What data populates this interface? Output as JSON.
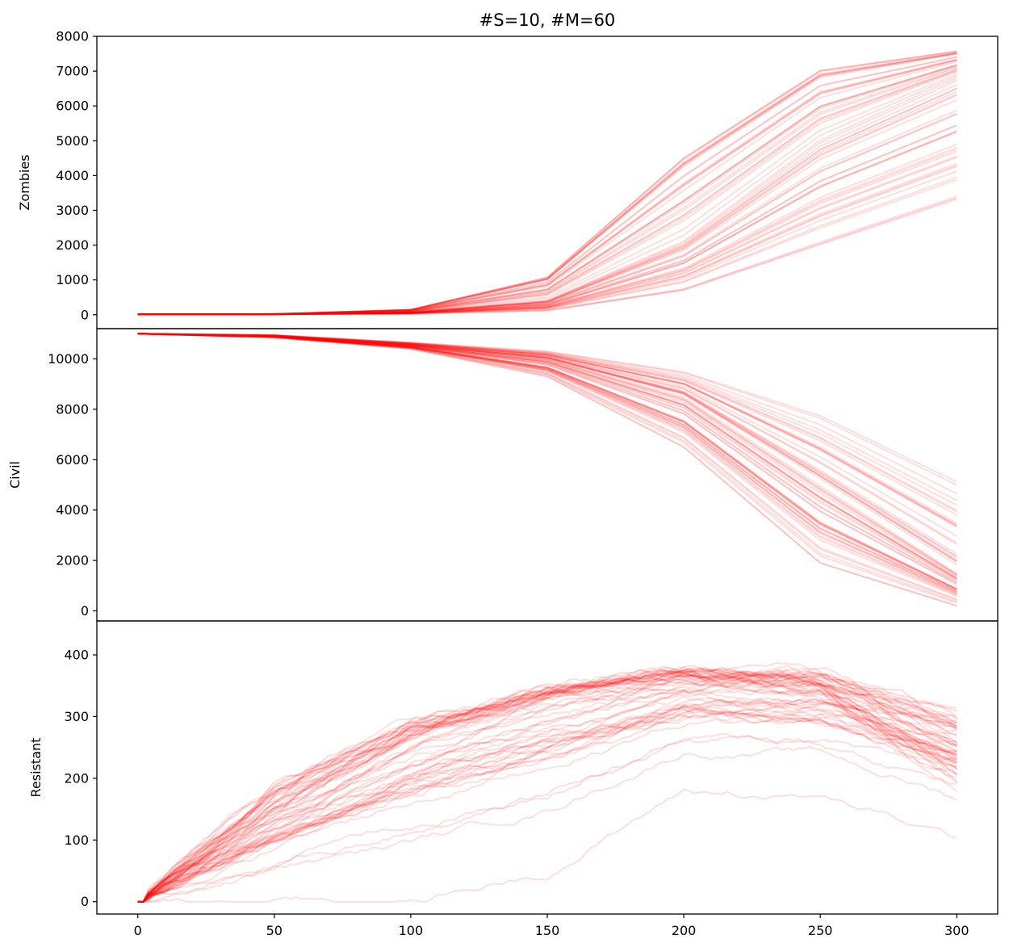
{
  "chart_data": {
    "type": "line",
    "title": "#S=10, #M=60",
    "xlabel": "",
    "xlim": [
      -15,
      315
    ],
    "x_ticks": [
      0,
      50,
      100,
      150,
      200,
      250,
      300
    ],
    "line_color": "#ff0000",
    "grid": false,
    "legend": "none",
    "panels": [
      {
        "ylabel": "Zombies",
        "ylim": [
          -400,
          8000
        ],
        "y_ticks": [
          0,
          1000,
          2000,
          3000,
          4000,
          5000,
          6000,
          7000,
          8000
        ],
        "series_summary": {
          "x": [
            0,
            50,
            100,
            150,
            200,
            250,
            300
          ],
          "earliest_run": [
            10,
            20,
            150,
            1100,
            4600,
            7100,
            7600
          ],
          "typical_run": [
            10,
            15,
            70,
            400,
            2100,
            5000,
            6800
          ],
          "latest_run": [
            10,
            12,
            30,
            120,
            700,
            2000,
            3300
          ]
        }
      },
      {
        "ylabel": "Civil",
        "ylim": [
          -400,
          11200
        ],
        "y_ticks": [
          0,
          2000,
          4000,
          6000,
          8000,
          10000
        ],
        "series_summary": {
          "x": [
            0,
            50,
            100,
            150,
            200,
            250,
            300
          ],
          "earliest_run": [
            11000,
            10850,
            10400,
            9300,
            6500,
            1900,
            200
          ],
          "typical_run": [
            11000,
            10900,
            10550,
            10000,
            8500,
            5000,
            1500
          ],
          "latest_run": [
            11000,
            10950,
            10650,
            10300,
            9500,
            7800,
            5200
          ]
        }
      },
      {
        "ylabel": "Resistant",
        "ylim": [
          -20,
          455
        ],
        "y_ticks": [
          0,
          100,
          200,
          300,
          400
        ],
        "series_summary": {
          "x": [
            0,
            50,
            100,
            150,
            200,
            250,
            300
          ],
          "earliest_run": [
            0,
            190,
            290,
            340,
            370,
            340,
            190
          ],
          "typical_run": [
            0,
            150,
            270,
            340,
            370,
            370,
            300
          ],
          "latest_run": [
            0,
            0,
            0,
            50,
            180,
            170,
            100
          ]
        }
      }
    ]
  }
}
